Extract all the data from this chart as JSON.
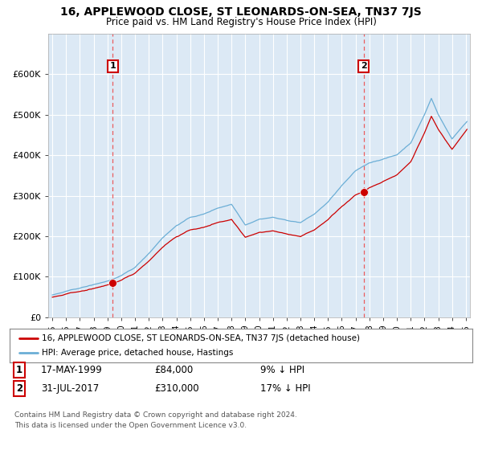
{
  "title": "16, APPLEWOOD CLOSE, ST LEONARDS-ON-SEA, TN37 7JS",
  "subtitle": "Price paid vs. HM Land Registry's House Price Index (HPI)",
  "legend_line1": "16, APPLEWOOD CLOSE, ST LEONARDS-ON-SEA, TN37 7JS (detached house)",
  "legend_line2": "HPI: Average price, detached house, Hastings",
  "footnote1": "Contains HM Land Registry data © Crown copyright and database right 2024.",
  "footnote2": "This data is licensed under the Open Government Licence v3.0.",
  "sale1_date": "17-MAY-1999",
  "sale1_price": "£84,000",
  "sale1_hpi": "9% ↓ HPI",
  "sale2_date": "31-JUL-2017",
  "sale2_price": "£310,000",
  "sale2_hpi": "17% ↓ HPI",
  "sale1_year": 1999.38,
  "sale1_value": 84000,
  "sale2_year": 2017.58,
  "sale2_value": 310000,
  "hpi_color": "#6baed6",
  "price_color": "#cc0000",
  "vline_color": "#ee4444",
  "grid_color": "#cccccc",
  "plot_bg_color": "#dce9f5",
  "background_color": "#ffffff",
  "ylim": [
    0,
    700000
  ],
  "yticks": [
    0,
    100000,
    200000,
    300000,
    400000,
    500000,
    600000
  ],
  "ytick_labels": [
    "£0",
    "£100K",
    "£200K",
    "£300K",
    "£400K",
    "£500K",
    "£600K"
  ],
  "xlim_start": 1994.7,
  "xlim_end": 2025.3
}
